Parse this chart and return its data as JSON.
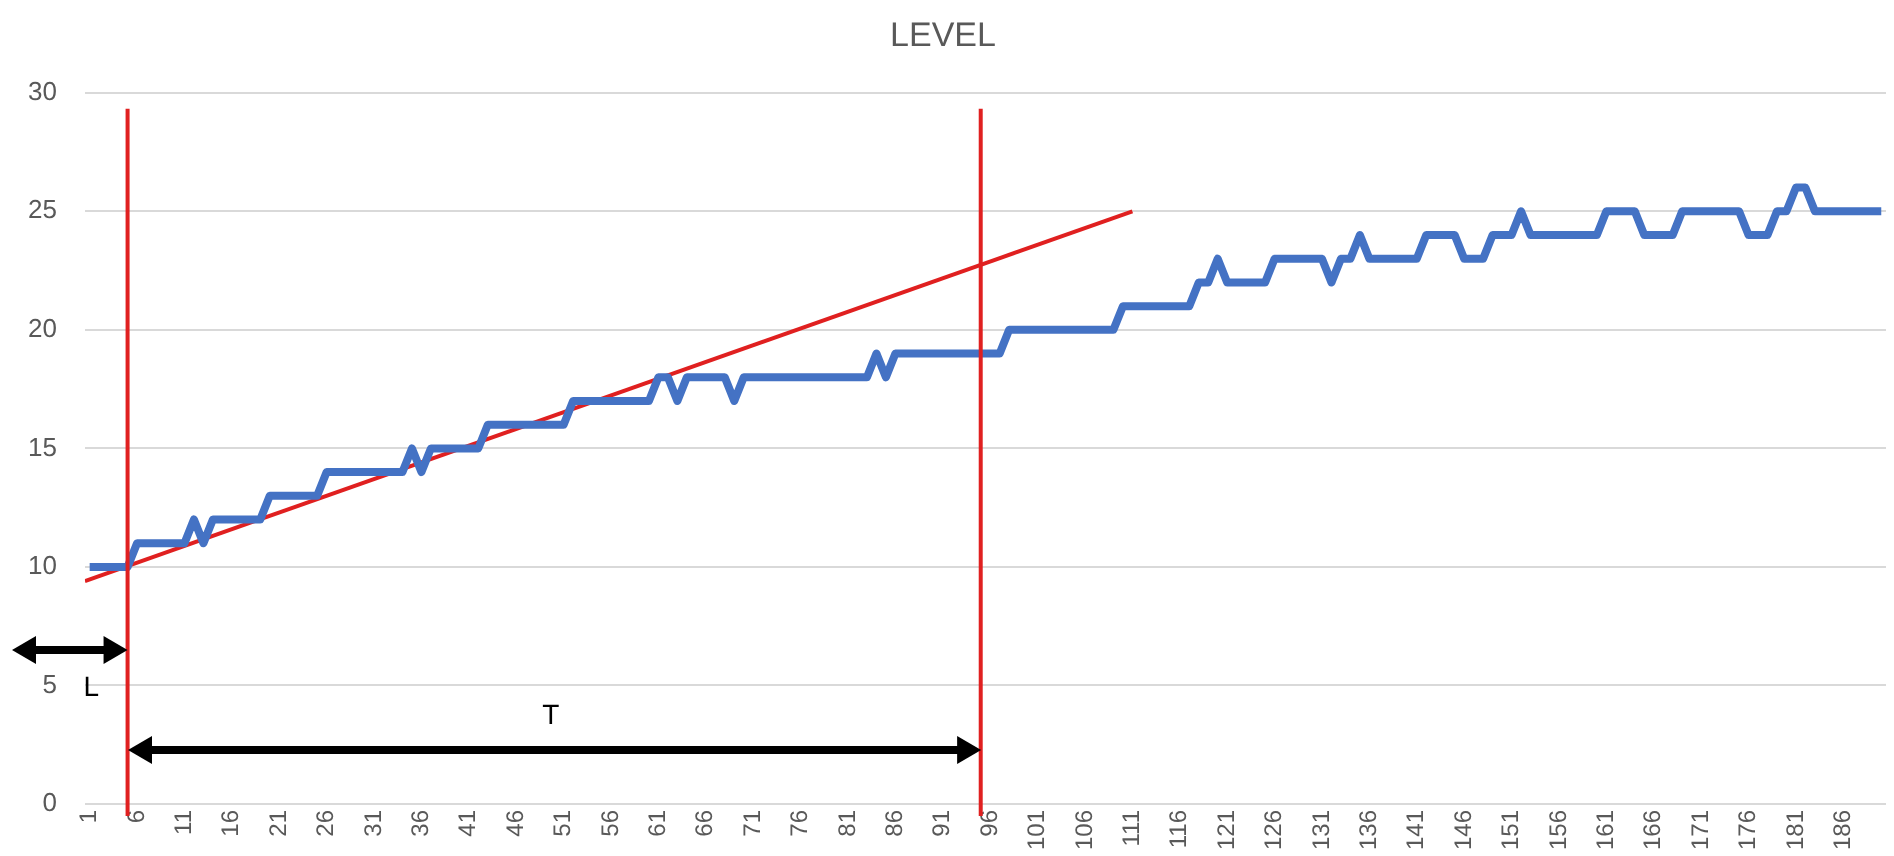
{
  "chart_data": {
    "type": "line",
    "title": "LEVEL",
    "marker": "none",
    "grid": "y",
    "xlim": [
      0.5,
      190.5
    ],
    "xticks": [
      1,
      6,
      11,
      16,
      21,
      26,
      31,
      36,
      41,
      46,
      51,
      56,
      61,
      66,
      71,
      76,
      81,
      86,
      91,
      96,
      101,
      106,
      111,
      116,
      121,
      126,
      131,
      136,
      141,
      146,
      151,
      156,
      161,
      166,
      171,
      176,
      181,
      186
    ],
    "ylim": [
      0,
      30
    ],
    "yticks": [
      0,
      5,
      10,
      15,
      20,
      25,
      30
    ],
    "series": [
      {
        "color": "#4472c4",
        "x": [
          1,
          5,
          6,
          11,
          12,
          13,
          14,
          19,
          20,
          25,
          26,
          34,
          35,
          36,
          37,
          42,
          43,
          51,
          52,
          60,
          61,
          62,
          63,
          64,
          68,
          69,
          70,
          83,
          84,
          85,
          86,
          97,
          98,
          109,
          110,
          117,
          118,
          119,
          120,
          121,
          125,
          126,
          131,
          132,
          133,
          134,
          135,
          136,
          141,
          142,
          145,
          146,
          148,
          149,
          151,
          152,
          153,
          160,
          161,
          164,
          165,
          168,
          169,
          175,
          176,
          178,
          179,
          180,
          181,
          182,
          183,
          190
        ],
        "values": [
          10,
          10,
          11,
          11,
          12,
          11,
          12,
          12,
          13,
          13,
          14,
          14,
          15,
          14,
          15,
          15,
          16,
          16,
          17,
          17,
          18,
          18,
          17,
          18,
          18,
          17,
          18,
          18,
          19,
          18,
          19,
          19,
          20,
          20,
          21,
          21,
          22,
          22,
          23,
          22,
          22,
          23,
          23,
          22,
          23,
          23,
          24,
          23,
          23,
          24,
          24,
          23,
          23,
          24,
          24,
          25,
          24,
          24,
          25,
          25,
          24,
          24,
          25,
          25,
          24,
          24,
          25,
          25,
          26,
          26,
          25,
          25
        ]
      },
      {
        "color": "#e02020",
        "x": [
          0.5,
          111
        ],
        "values": [
          9.4,
          25
        ]
      }
    ],
    "ref_lines": [
      {
        "axis": "x",
        "value": 5,
        "color": "#e02020"
      },
      {
        "axis": "x",
        "value": 95,
        "color": "#e02020"
      }
    ],
    "annotations": [
      "L",
      "T"
    ]
  }
}
